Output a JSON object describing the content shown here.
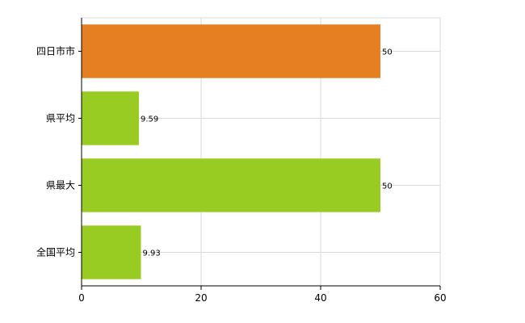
{
  "chart_data": {
    "type": "bar",
    "orientation": "horizontal",
    "categories": [
      "四日市市",
      "県平均",
      "県最大",
      "全国平均"
    ],
    "values": [
      50,
      9.59,
      50,
      9.93
    ],
    "data_labels": [
      "50",
      "9.59",
      "50",
      "9.93"
    ],
    "bar_colors": [
      "#e67e22",
      "#99cc22",
      "#99cc22",
      "#99cc22"
    ],
    "xlim": [
      0,
      60
    ],
    "xticks": [
      0,
      20,
      40,
      60
    ],
    "grid": true,
    "title": "",
    "xlabel": "",
    "ylabel": ""
  }
}
